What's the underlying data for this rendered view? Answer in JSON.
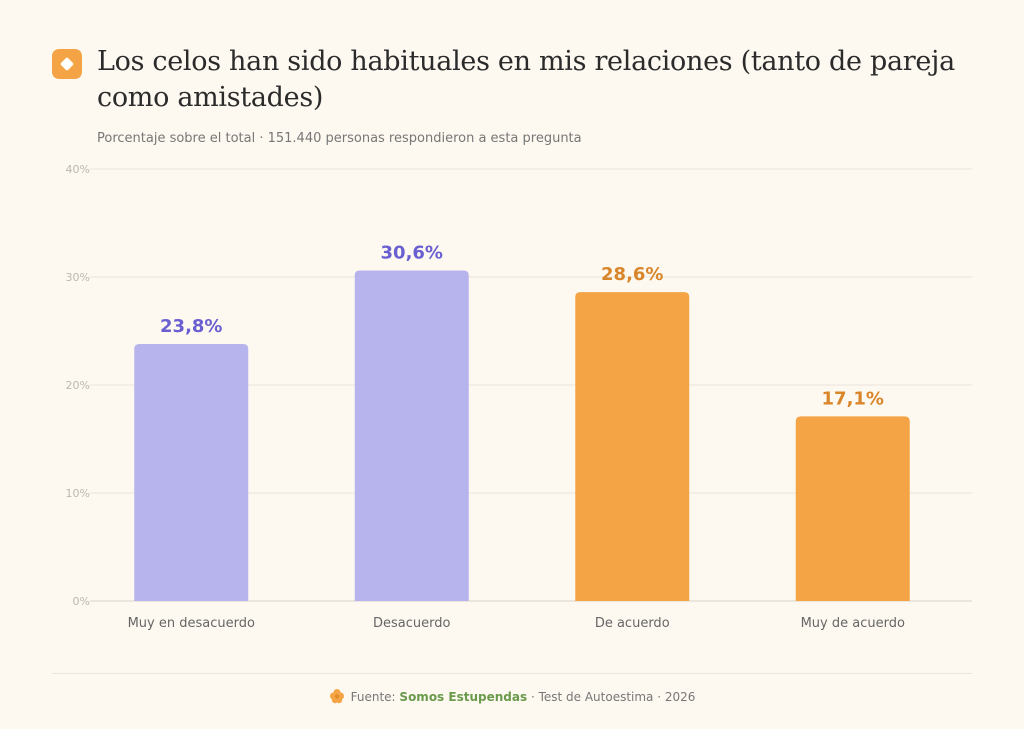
{
  "header": {
    "title": "Los celos han sido habituales en mis relaciones (tanto de pareja como amistades)",
    "subtitle": "Porcentaje sobre el total · 151.440 personas respondieron a esta pregunta",
    "icon": "diamond-icon"
  },
  "footer": {
    "prefix": "Fuente:",
    "brand": "Somos Estupendas",
    "suffix": "· Test de Autoestima · 2026",
    "icon": "flower-icon"
  },
  "colors": {
    "background": "#fdf8f0",
    "purple_bar": "#b7b3ed",
    "purple_label": "#6a5fd0",
    "orange_bar": "#f5a445",
    "orange_label": "#d9862a",
    "grid": "#ebe6dc",
    "brand": "#6a9a4b"
  },
  "chart_data": {
    "type": "bar",
    "categories": [
      "Muy en desacuerdo",
      "Desacuerdo",
      "De acuerdo",
      "Muy de acuerdo"
    ],
    "values": [
      23.8,
      30.6,
      28.6,
      17.1
    ],
    "value_labels": [
      "23,8%",
      "30,6%",
      "28,6%",
      "17,1%"
    ],
    "bar_colors": [
      "#b7b3ed",
      "#b7b3ed",
      "#f5a445",
      "#f5a445"
    ],
    "label_colors": [
      "#6a5fd0",
      "#6a5fd0",
      "#d9862a",
      "#d9862a"
    ],
    "y_ticks": [
      0,
      10,
      20,
      30,
      40
    ],
    "y_tick_labels": [
      "0%",
      "10%",
      "20%",
      "30%",
      "40%"
    ],
    "ylim": [
      0,
      40
    ],
    "grid": true,
    "legend": "none"
  }
}
